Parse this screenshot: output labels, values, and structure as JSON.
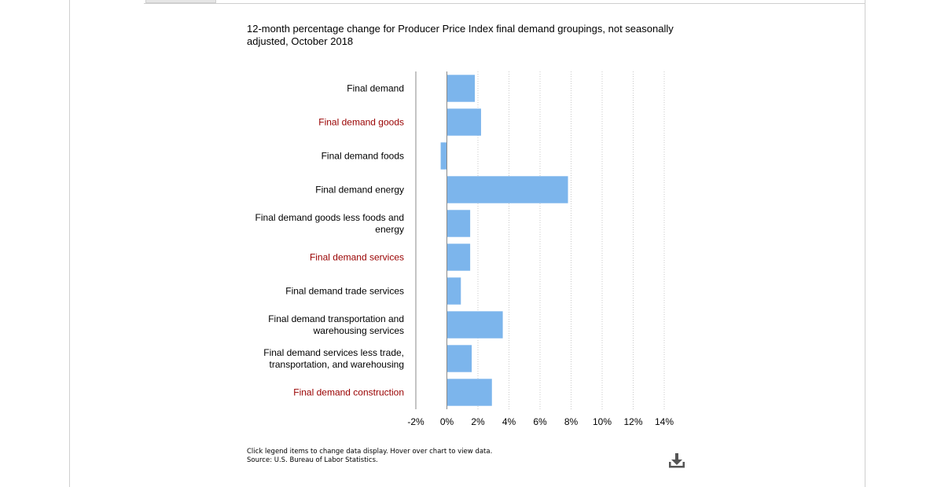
{
  "page": {
    "footnote_line1": "Click legend items to change data display. Hover over chart to view data.",
    "footnote_line2": "Source: U.S. Bureau of Labor Statistics.",
    "download_icon": "download-icon"
  },
  "chart_data": {
    "type": "bar",
    "orientation": "horizontal",
    "title": "12-month percentage change for Producer Price Index final demand groupings, not seasonally adjusted, October 2018",
    "categories": [
      {
        "label": "Final demand",
        "lines": [
          "Final demand"
        ],
        "color": "#000000"
      },
      {
        "label": "Final demand goods",
        "lines": [
          "Final demand goods"
        ],
        "color": "#990000"
      },
      {
        "label": "Final demand foods",
        "lines": [
          "Final demand foods"
        ],
        "color": "#000000"
      },
      {
        "label": "Final demand energy",
        "lines": [
          "Final demand energy"
        ],
        "color": "#000000"
      },
      {
        "label": "Final demand goods less foods and energy",
        "lines": [
          "Final demand goods less foods and",
          "energy"
        ],
        "color": "#000000"
      },
      {
        "label": "Final demand services",
        "lines": [
          "Final demand services"
        ],
        "color": "#990000"
      },
      {
        "label": "Final demand trade services",
        "lines": [
          "Final demand trade services"
        ],
        "color": "#000000"
      },
      {
        "label": "Final demand transportation and warehousing services",
        "lines": [
          "Final demand transportation and",
          "warehousing services"
        ],
        "color": "#000000"
      },
      {
        "label": "Final demand services less trade, transportation, and warehousing",
        "lines": [
          "Final demand services less trade,",
          "transportation, and warehousing"
        ],
        "color": "#000000"
      },
      {
        "label": "Final demand construction",
        "lines": [
          "Final demand construction"
        ],
        "color": "#990000"
      }
    ],
    "values": [
      1.8,
      2.2,
      -0.4,
      7.8,
      1.5,
      1.5,
      0.9,
      3.6,
      1.6,
      2.9
    ],
    "bar_color": "#7cb5ec",
    "xlim": [
      -2,
      14
    ],
    "xticks": [
      -2,
      0,
      2,
      4,
      6,
      8,
      10,
      12,
      14
    ],
    "xtick_suffix": "%",
    "grid": "vertical dotted",
    "legend": "none"
  }
}
